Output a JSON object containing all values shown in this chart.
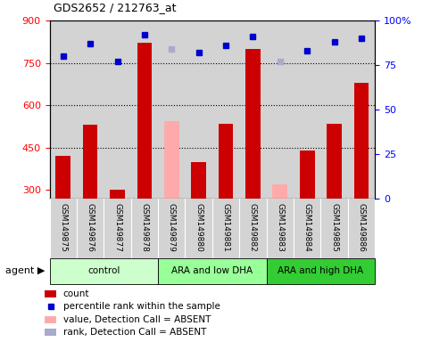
{
  "title": "GDS2652 / 212763_at",
  "samples": [
    "GSM149875",
    "GSM149876",
    "GSM149877",
    "GSM149878",
    "GSM149879",
    "GSM149880",
    "GSM149881",
    "GSM149882",
    "GSM149883",
    "GSM149884",
    "GSM149885",
    "GSM149886"
  ],
  "bar_values": [
    420,
    530,
    300,
    820,
    null,
    400,
    535,
    800,
    null,
    440,
    535,
    680
  ],
  "absent_bar_values": [
    null,
    null,
    null,
    null,
    545,
    null,
    null,
    null,
    320,
    null,
    null,
    null
  ],
  "rank_values": [
    80,
    87,
    77,
    92,
    null,
    82,
    86,
    91,
    null,
    83,
    88,
    90
  ],
  "absent_rank_values": [
    null,
    null,
    null,
    null,
    84,
    null,
    null,
    null,
    77,
    null,
    null,
    null
  ],
  "groups": [
    {
      "label": "control",
      "start": 0,
      "end": 3,
      "color": "#ccffcc"
    },
    {
      "label": "ARA and low DHA",
      "start": 4,
      "end": 7,
      "color": "#99ff99"
    },
    {
      "label": "ARA and high DHA",
      "start": 8,
      "end": 11,
      "color": "#33cc33"
    }
  ],
  "ylim_left": [
    270,
    900
  ],
  "ylim_right": [
    0,
    100
  ],
  "yticks_left": [
    300,
    450,
    600,
    750,
    900
  ],
  "yticks_right": [
    0,
    25,
    50,
    75,
    100
  ],
  "hlines": [
    750,
    600,
    450
  ],
  "bar_color": "#cc0000",
  "absent_bar_color": "#ffaaaa",
  "rank_color": "#0000cc",
  "absent_rank_color": "#aaaacc",
  "bar_width": 0.55,
  "plot_bg_color": "#d3d3d3",
  "label_bg_color": "#d3d3d3",
  "fig_bg_color": "#ffffff"
}
